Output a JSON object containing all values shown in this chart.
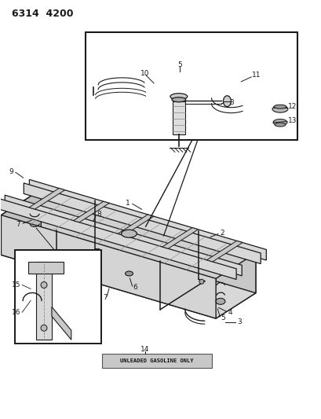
{
  "title": "6314  4200",
  "bg": "#ffffff",
  "lc": "#1a1a1a",
  "lc2": "#333333",
  "fs_title": 9,
  "fs_label": 6.5,
  "fs_small": 5.5,
  "fig_w": 4.1,
  "fig_h": 5.33,
  "bottom_text": "UNLEADED GASOLINE ONLY"
}
